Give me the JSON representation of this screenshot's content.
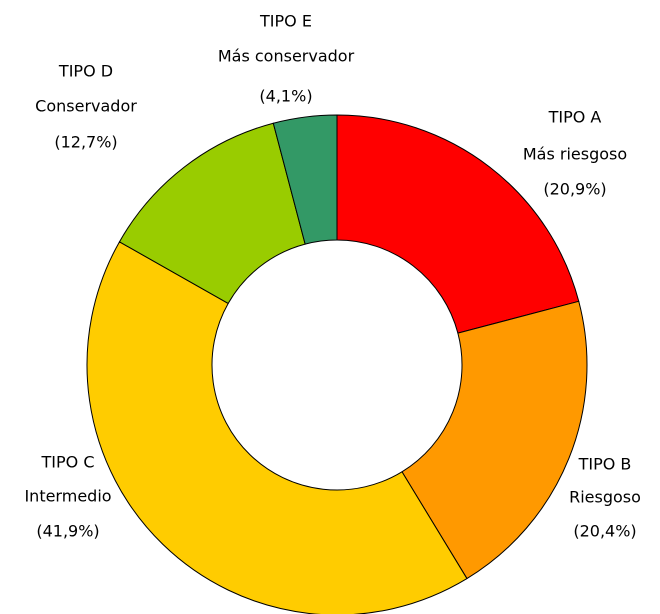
{
  "chart_data": {
    "type": "donut",
    "categories": [
      "TIPO A",
      "TIPO B",
      "TIPO C",
      "TIPO D",
      "TIPO E"
    ],
    "descriptions": [
      "Más riesgoso",
      "Riesgoso",
      "Intermedio",
      "Conservador",
      "Más conservador"
    ],
    "values": [
      20.9,
      20.4,
      41.9,
      12.7,
      4.1
    ],
    "value_labels": [
      "(20,9%)",
      "(20,4%)",
      "(41,9%)",
      "(12,7%)",
      "(4,1%)"
    ],
    "colors": [
      "#ff0000",
      "#ff9900",
      "#ffcc00",
      "#99cc00",
      "#339966"
    ]
  }
}
